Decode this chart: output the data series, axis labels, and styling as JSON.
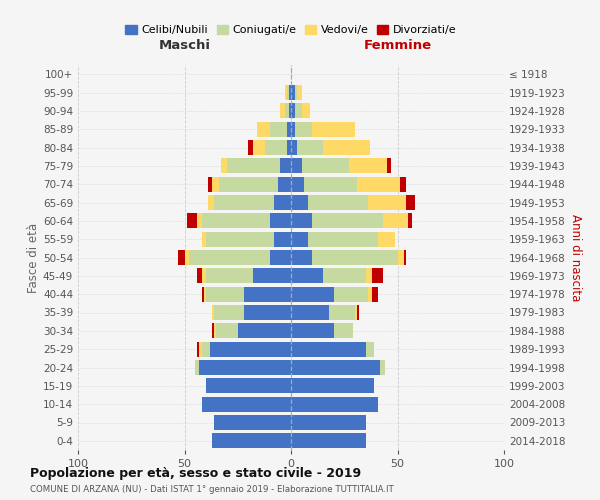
{
  "age_groups": [
    "0-4",
    "5-9",
    "10-14",
    "15-19",
    "20-24",
    "25-29",
    "30-34",
    "35-39",
    "40-44",
    "45-49",
    "50-54",
    "55-59",
    "60-64",
    "65-69",
    "70-74",
    "75-79",
    "80-84",
    "85-89",
    "90-94",
    "95-99",
    "100+"
  ],
  "birth_years": [
    "2014-2018",
    "2009-2013",
    "2004-2008",
    "1999-2003",
    "1994-1998",
    "1989-1993",
    "1984-1988",
    "1979-1983",
    "1974-1978",
    "1969-1973",
    "1964-1968",
    "1959-1963",
    "1954-1958",
    "1949-1953",
    "1944-1948",
    "1939-1943",
    "1934-1938",
    "1929-1933",
    "1924-1928",
    "1919-1923",
    "≤ 1918"
  ],
  "maschi": {
    "celibi": [
      37,
      36,
      42,
      40,
      43,
      38,
      25,
      22,
      22,
      18,
      10,
      8,
      10,
      8,
      6,
      5,
      2,
      2,
      1,
      1,
      0
    ],
    "coniugati": [
      0,
      0,
      0,
      0,
      2,
      4,
      10,
      14,
      18,
      22,
      38,
      32,
      32,
      28,
      28,
      25,
      10,
      8,
      2,
      1,
      0
    ],
    "vedovi": [
      0,
      0,
      0,
      0,
      0,
      1,
      1,
      1,
      1,
      2,
      2,
      2,
      2,
      3,
      3,
      3,
      6,
      6,
      2,
      1,
      0
    ],
    "divorziati": [
      0,
      0,
      0,
      0,
      0,
      1,
      1,
      0,
      1,
      2,
      3,
      0,
      5,
      0,
      2,
      0,
      2,
      0,
      0,
      0,
      0
    ]
  },
  "femmine": {
    "nubili": [
      35,
      35,
      41,
      39,
      42,
      35,
      20,
      18,
      20,
      15,
      10,
      8,
      10,
      8,
      6,
      5,
      3,
      2,
      2,
      2,
      0
    ],
    "coniugate": [
      0,
      0,
      0,
      0,
      2,
      4,
      9,
      12,
      16,
      20,
      40,
      33,
      33,
      28,
      25,
      22,
      12,
      8,
      3,
      1,
      0
    ],
    "vedove": [
      0,
      0,
      0,
      0,
      0,
      0,
      0,
      1,
      2,
      3,
      3,
      8,
      12,
      18,
      20,
      18,
      22,
      20,
      4,
      2,
      0
    ],
    "divorziate": [
      0,
      0,
      0,
      0,
      0,
      0,
      0,
      1,
      3,
      5,
      1,
      0,
      2,
      4,
      3,
      2,
      0,
      0,
      0,
      0,
      0
    ]
  },
  "colors": {
    "celibi_nubili": "#4472C4",
    "coniugati": "#C5D9A0",
    "vedovi": "#FFD966",
    "divorziati": "#C00000"
  },
  "title": "Popolazione per età, sesso e stato civile - 2019",
  "subtitle": "COMUNE DI ARZANA (NU) - Dati ISTAT 1° gennaio 2019 - Elaborazione TUTTITALIA.IT",
  "xlabel_maschi": "Maschi",
  "xlabel_femmine": "Femmine",
  "ylabel": "Fasce di età",
  "ylabel_right": "Anni di nascita",
  "xlim": 100,
  "background_color": "#f5f5f5",
  "grid_color": "#cccccc",
  "legend_labels": [
    "Celibi/Nubili",
    "Coniugati/e",
    "Vedovi/e",
    "Divorziati/e"
  ]
}
